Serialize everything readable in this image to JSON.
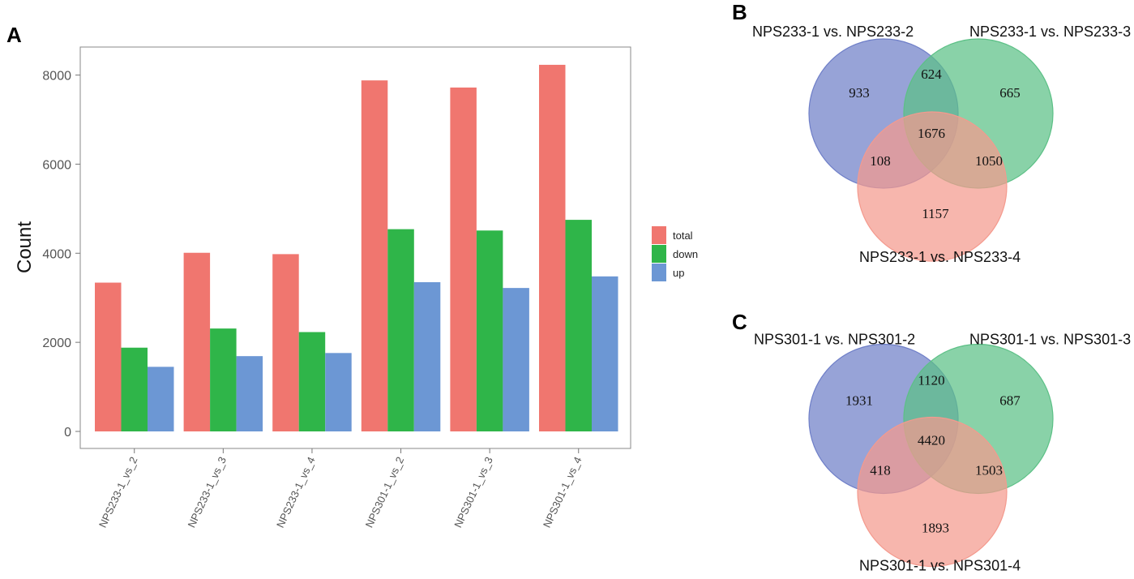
{
  "panels": {
    "a": "A",
    "b": "B",
    "c": "C"
  },
  "chart_data": [
    {
      "type": "bar",
      "title": "",
      "xlabel": "",
      "ylabel": "Count",
      "ylim": [
        0,
        8700
      ],
      "yticks": [
        0,
        2000,
        4000,
        6000,
        8000
      ],
      "yticklabels": [
        "0",
        "2000",
        "4000",
        "6000",
        "8000"
      ],
      "categories": [
        "NPS233-1_vs_2",
        "NPS233-1_vs_3",
        "NPS233-1_vs_4",
        "NPS301-1_vs_2",
        "NPS301-1_vs_3",
        "NPS301-1_vs_4"
      ],
      "series": [
        {
          "name": "total",
          "color": "#f0766f",
          "values": [
            3340,
            4010,
            3980,
            7880,
            7720,
            8230
          ]
        },
        {
          "name": "down",
          "color": "#2fb549",
          "values": [
            1880,
            2310,
            2230,
            4540,
            4510,
            4750
          ]
        },
        {
          "name": "up",
          "color": "#6c97d4",
          "values": [
            1450,
            1690,
            1760,
            3350,
            3220,
            3480
          ]
        }
      ],
      "legend_position": "right",
      "grid": false
    },
    {
      "type": "venn",
      "sets": [
        "NPS233-1 vs. NPS233-2",
        "NPS233-1 vs. NPS233-3",
        "NPS233-1 vs. NPS233-4"
      ],
      "colors": [
        "#6f7fc8",
        "#5cc086",
        "#f49a8e"
      ],
      "regions": {
        "only_1": "933",
        "only_2": "665",
        "only_3": "1157",
        "1_2": "624",
        "1_3": "108",
        "2_3": "1050",
        "1_2_3": "1676"
      }
    },
    {
      "type": "venn",
      "sets": [
        "NPS301-1 vs. NPS301-2",
        "NPS301-1 vs. NPS301-3",
        "NPS301-1 vs. NPS301-4"
      ],
      "colors": [
        "#6f7fc8",
        "#5cc086",
        "#f49a8e"
      ],
      "regions": {
        "only_1": "1931",
        "only_2": "687",
        "only_3": "1893",
        "1_2": "1120",
        "1_3": "418",
        "2_3": "1503",
        "1_2_3": "4420"
      }
    }
  ]
}
